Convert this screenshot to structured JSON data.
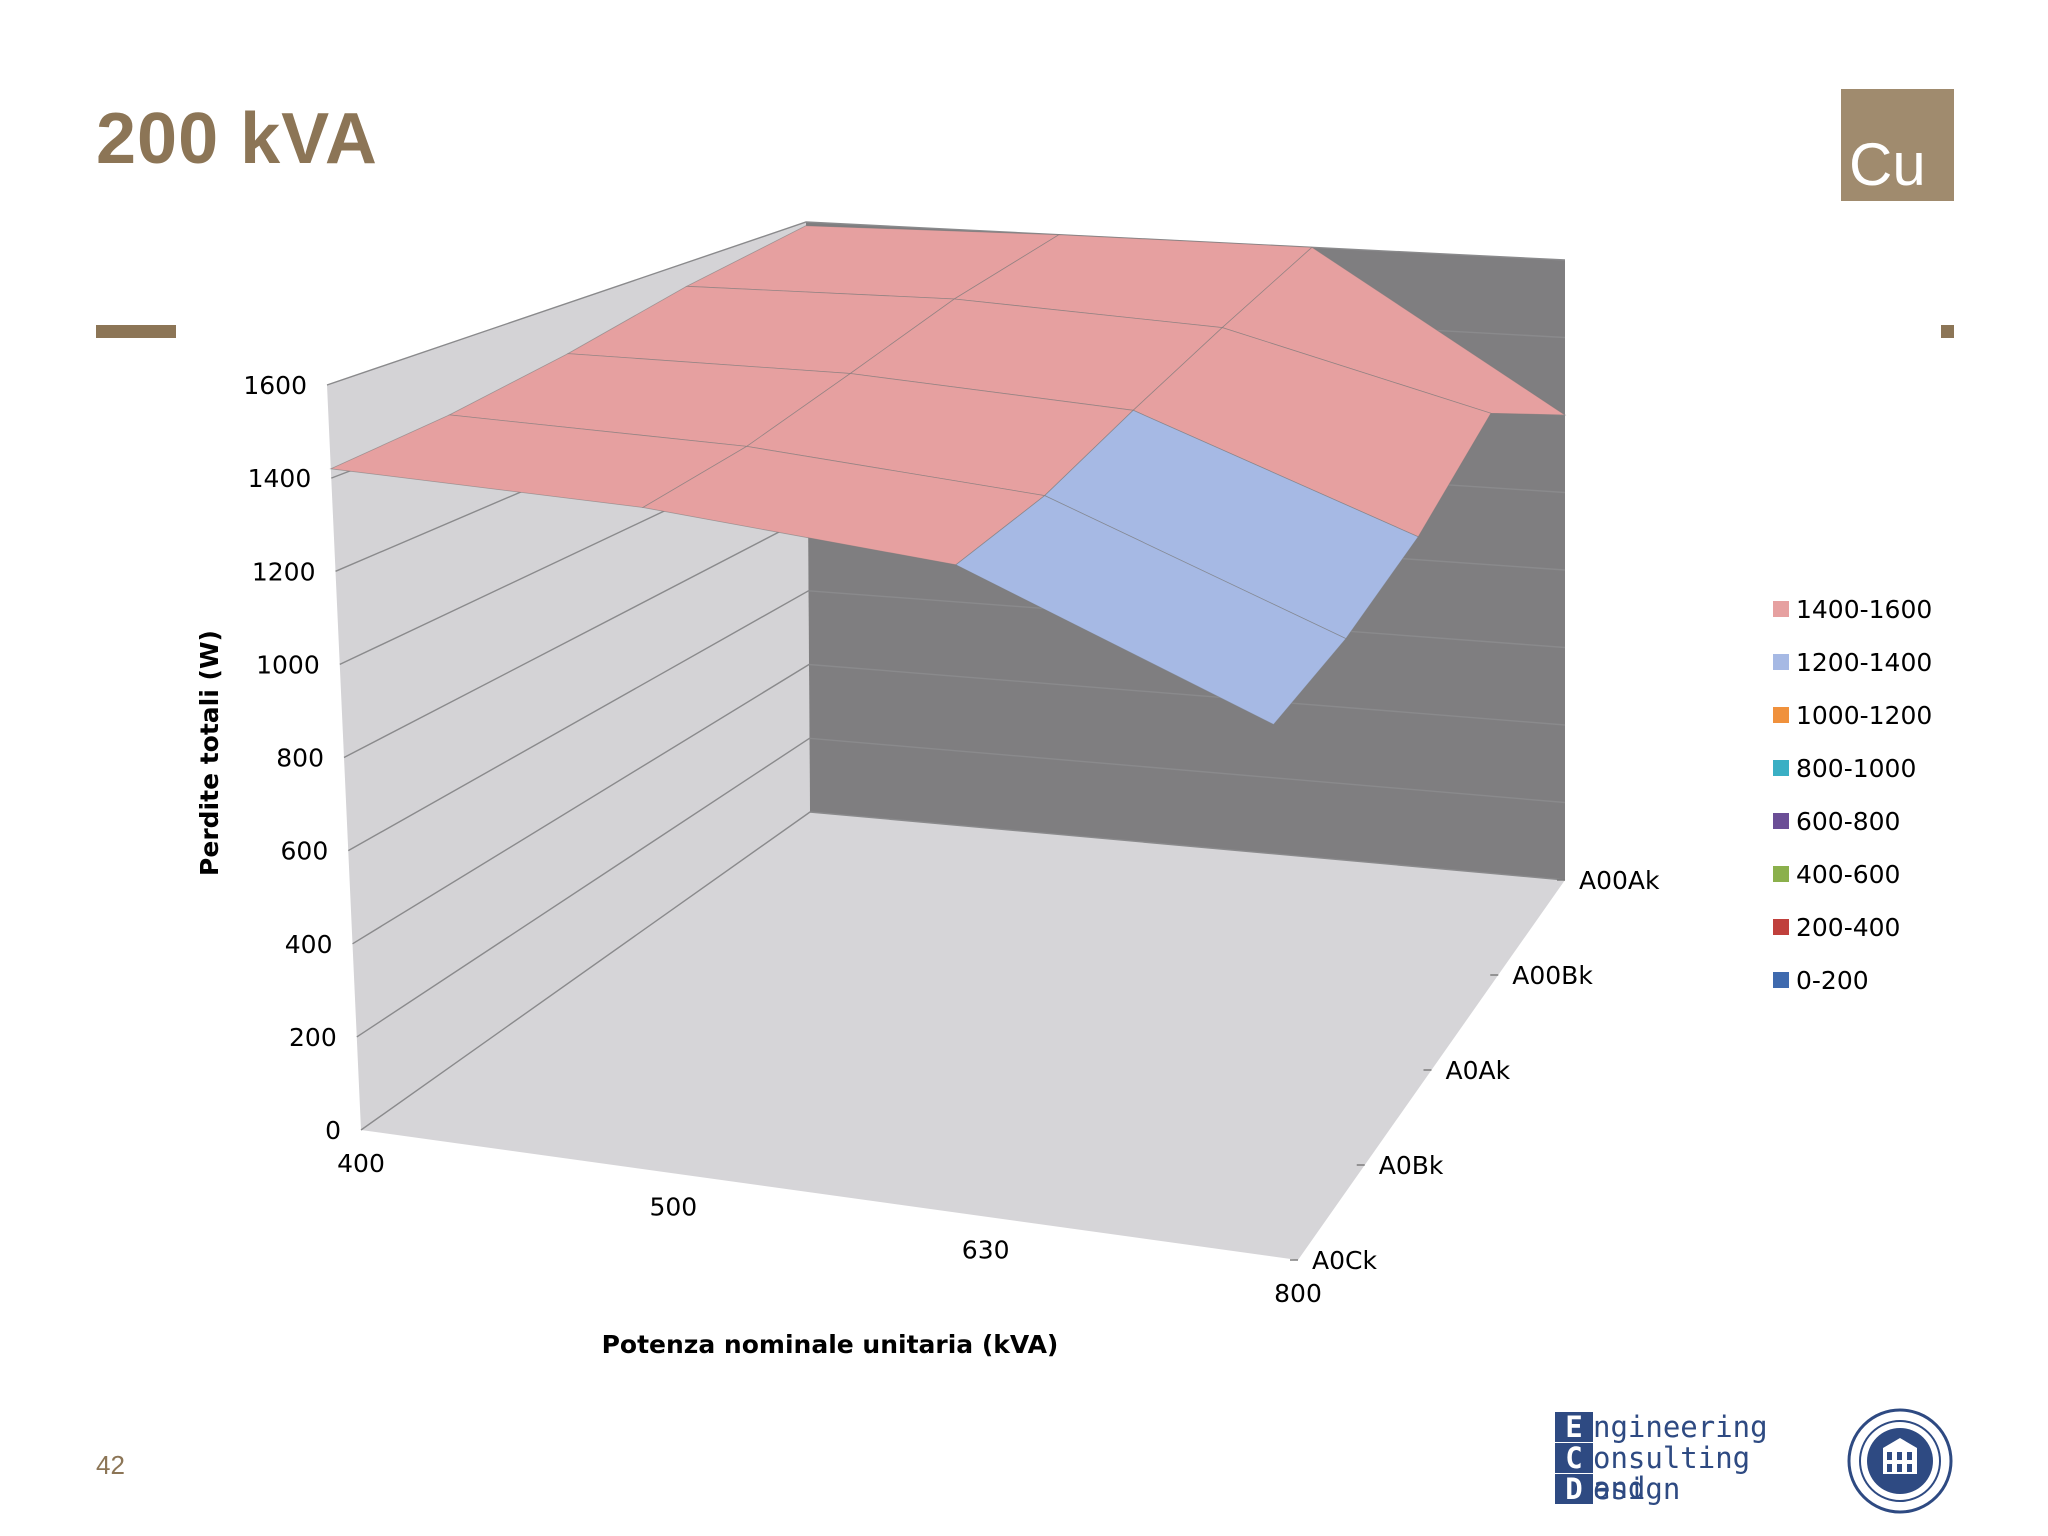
{
  "slide": {
    "title": "200 kVA",
    "badge": "Cu",
    "page_number": "42"
  },
  "logo": {
    "line1_initial": "E",
    "line1_rest": "ngineering",
    "line2_initial": "C",
    "line2_rest": "onsulting and",
    "line3_initial": "D",
    "line3_rest": "esign"
  },
  "colors": {
    "accent": "#8C7556",
    "back_wall": "#7F7E80",
    "side_wall": "#D4D3D6",
    "floor": "#D6D5D8",
    "band_1400_1600": "#E6A0A0",
    "band_1200_1400": "#A6B9E4",
    "band_1000_1200": "#F0913C",
    "band_800_1000": "#3AAFC4",
    "band_600_800": "#6B4E96",
    "band_400_600": "#8BB04C",
    "band_200_400": "#C0403C",
    "band_0_200": "#3F6AAE"
  },
  "chart_data": {
    "type": "surface",
    "title": "",
    "xlabel": "Potenza nominale  unitaria (kVA)",
    "ylabel": "Perdite totali (W)",
    "x_categories": [
      "400",
      "500",
      "630",
      "800"
    ],
    "depth_categories": [
      "A0Ck",
      "A0Bk",
      "A0Ak",
      "A00Bk",
      "A00Ak"
    ],
    "z_ticks": [
      "0",
      "200",
      "400",
      "600",
      "800",
      "1000",
      "1200",
      "1400",
      "1600"
    ],
    "zlim": [
      0,
      1600
    ],
    "series": [
      {
        "depth": "A0Ck",
        "values": [
          1420,
          1430,
          1400,
          1150
        ]
      },
      {
        "depth": "A0Bk",
        "values": [
          1440,
          1450,
          1420,
          1180
        ]
      },
      {
        "depth": "A0Ak",
        "values": [
          1480,
          1500,
          1480,
          1250
        ]
      },
      {
        "depth": "A00Bk",
        "values": [
          1540,
          1560,
          1540,
          1380
        ]
      },
      {
        "depth": "A00Ak",
        "values": [
          1590,
          1600,
          1600,
          1200
        ]
      }
    ],
    "legend": {
      "position": "right",
      "entries": [
        "1400-1600",
        "1200-1400",
        "1000-1200",
        "800-1000",
        "600-800",
        "400-600",
        "200-400",
        "0-200"
      ]
    }
  }
}
